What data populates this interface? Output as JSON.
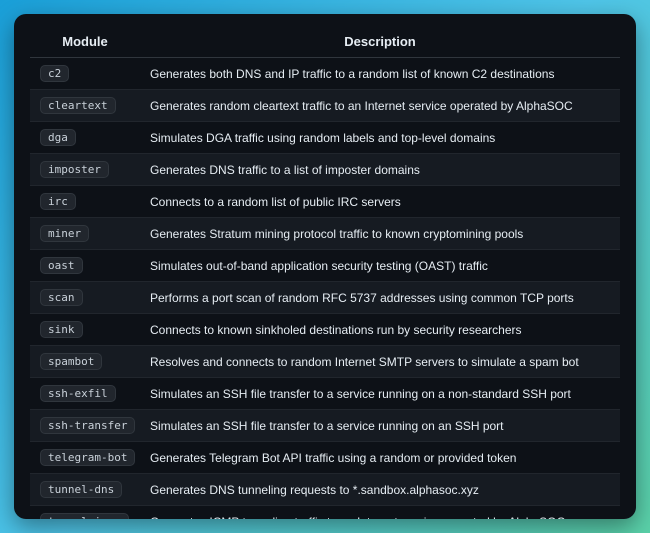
{
  "table": {
    "headers": {
      "module": "Module",
      "description": "Description"
    },
    "rows": [
      {
        "module": "c2",
        "description": "Generates both DNS and IP traffic to a random list of known C2 destinations"
      },
      {
        "module": "cleartext",
        "description": "Generates random cleartext traffic to an Internet service operated by AlphaSOC"
      },
      {
        "module": "dga",
        "description": "Simulates DGA traffic using random labels and top-level domains"
      },
      {
        "module": "imposter",
        "description": "Generates DNS traffic to a list of imposter domains"
      },
      {
        "module": "irc",
        "description": "Connects to a random list of public IRC servers"
      },
      {
        "module": "miner",
        "description": "Generates Stratum mining protocol traffic to known cryptomining pools"
      },
      {
        "module": "oast",
        "description": "Simulates out-of-band application security testing (OAST) traffic"
      },
      {
        "module": "scan",
        "description": "Performs a port scan of random RFC 5737 addresses using common TCP ports"
      },
      {
        "module": "sink",
        "description": "Connects to known sinkholed destinations run by security researchers"
      },
      {
        "module": "spambot",
        "description": "Resolves and connects to random Internet SMTP servers to simulate a spam bot"
      },
      {
        "module": "ssh-exfil",
        "description": "Simulates an SSH file transfer to a service running on a non-standard SSH port"
      },
      {
        "module": "ssh-transfer",
        "description": "Simulates an SSH file transfer to a service running on an SSH port"
      },
      {
        "module": "telegram-bot",
        "description": "Generates Telegram Bot API traffic using a random or provided token"
      },
      {
        "module": "tunnel-dns",
        "description": "Generates DNS tunneling requests to *.sandbox.alphasoc.xyz"
      },
      {
        "module": "tunnel-icmp",
        "description": "Generates ICMP tunneling traffic to an Internet service operated by AlphaSOC"
      }
    ]
  },
  "colors": {
    "panel_bg": "#0d1117",
    "row_alt_bg": "#161b22",
    "border": "#30363d",
    "text": "#e6edf3",
    "tag_bg": "#21262d",
    "tag_text": "#c9d1d9"
  }
}
